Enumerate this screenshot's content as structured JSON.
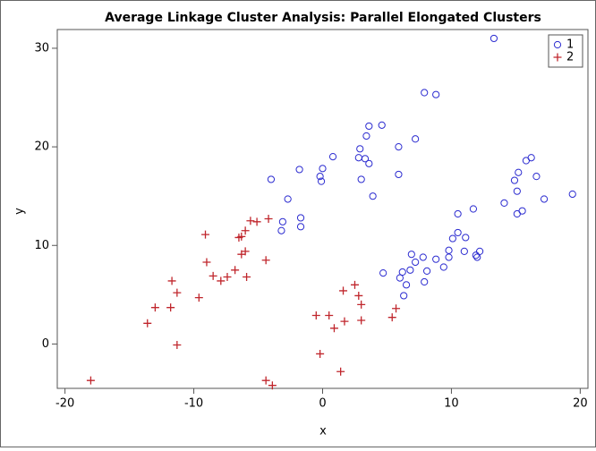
{
  "chart_data": {
    "type": "scatter",
    "title": "Average Linkage Cluster Analysis: Parallel Elongated Clusters",
    "x_label": "x",
    "y_label": "y",
    "xlim": [
      -20.6,
      20.6
    ],
    "xticks": [
      -20,
      -10,
      0,
      10,
      20
    ],
    "ylim": [
      -4.5,
      31.9
    ],
    "yticks": [
      0,
      10,
      20,
      30
    ],
    "legend": "top-right",
    "series": [
      {
        "name": "1",
        "color": "#2b2bd0",
        "marker": "circle",
        "x": [
          13.3,
          7.9,
          8.8,
          3.6,
          4.6,
          3.4,
          7.2,
          5.9,
          0.8,
          -1.8,
          2.9,
          2.8,
          3.3,
          3.6,
          5.9,
          0.0,
          -0.2,
          -0.1,
          3.0,
          -4.0,
          3.9,
          -2.7,
          -1.7,
          -3.1,
          -1.7,
          -3.2,
          19.4,
          17.2,
          16.6,
          16.2,
          15.8,
          15.2,
          14.9,
          15.1,
          14.1,
          15.5,
          15.1,
          11.7,
          10.5,
          10.5,
          10.1,
          11.1,
          9.8,
          12.2,
          11.9,
          11.0,
          12.0,
          8.8,
          9.8,
          7.8,
          7.2,
          6.9,
          8.1,
          9.4,
          6.8,
          6.2,
          4.7,
          6.0,
          7.9,
          6.5,
          6.3
        ],
        "y": [
          31.0,
          25.5,
          25.3,
          22.1,
          22.2,
          21.1,
          20.8,
          20.0,
          19.0,
          17.7,
          19.8,
          18.9,
          18.8,
          18.3,
          17.2,
          17.8,
          17.0,
          16.5,
          16.7,
          16.7,
          15.0,
          14.7,
          12.8,
          12.4,
          11.9,
          11.5,
          15.2,
          14.7,
          17.0,
          18.9,
          18.6,
          17.4,
          16.6,
          15.5,
          14.3,
          13.5,
          13.2,
          13.7,
          13.2,
          11.3,
          10.7,
          10.8,
          9.5,
          9.4,
          9.0,
          9.4,
          8.8,
          8.6,
          8.8,
          8.8,
          8.3,
          9.1,
          7.4,
          7.8,
          7.5,
          7.3,
          7.2,
          6.7,
          6.3,
          6.0,
          4.9
        ]
      },
      {
        "name": "2",
        "color": "#c0262c",
        "marker": "plus",
        "x": [
          -18.0,
          -13.6,
          -13.0,
          -11.8,
          -11.7,
          -11.3,
          -11.3,
          -9.6,
          -9.1,
          -9.0,
          -8.5,
          -7.9,
          -7.4,
          -6.8,
          -6.5,
          -6.3,
          -6.3,
          -6.0,
          -6.0,
          -5.9,
          -5.6,
          -5.1,
          -4.4,
          -4.2,
          -4.4,
          -3.9,
          -0.5,
          -0.2,
          0.5,
          0.9,
          1.4,
          1.6,
          1.7,
          2.5,
          2.8,
          3.0,
          3.0,
          5.4,
          5.7
        ],
        "y": [
          -3.7,
          2.1,
          3.7,
          3.7,
          6.4,
          5.2,
          -0.1,
          4.7,
          11.1,
          8.3,
          6.9,
          6.4,
          6.8,
          7.5,
          10.8,
          10.9,
          9.1,
          11.5,
          9.4,
          6.8,
          12.5,
          12.4,
          8.5,
          12.7,
          -3.7,
          -4.2,
          2.9,
          -1.0,
          2.9,
          1.6,
          -2.8,
          5.4,
          2.3,
          6.0,
          4.9,
          4.0,
          2.4,
          2.7,
          3.6
        ]
      }
    ]
  }
}
